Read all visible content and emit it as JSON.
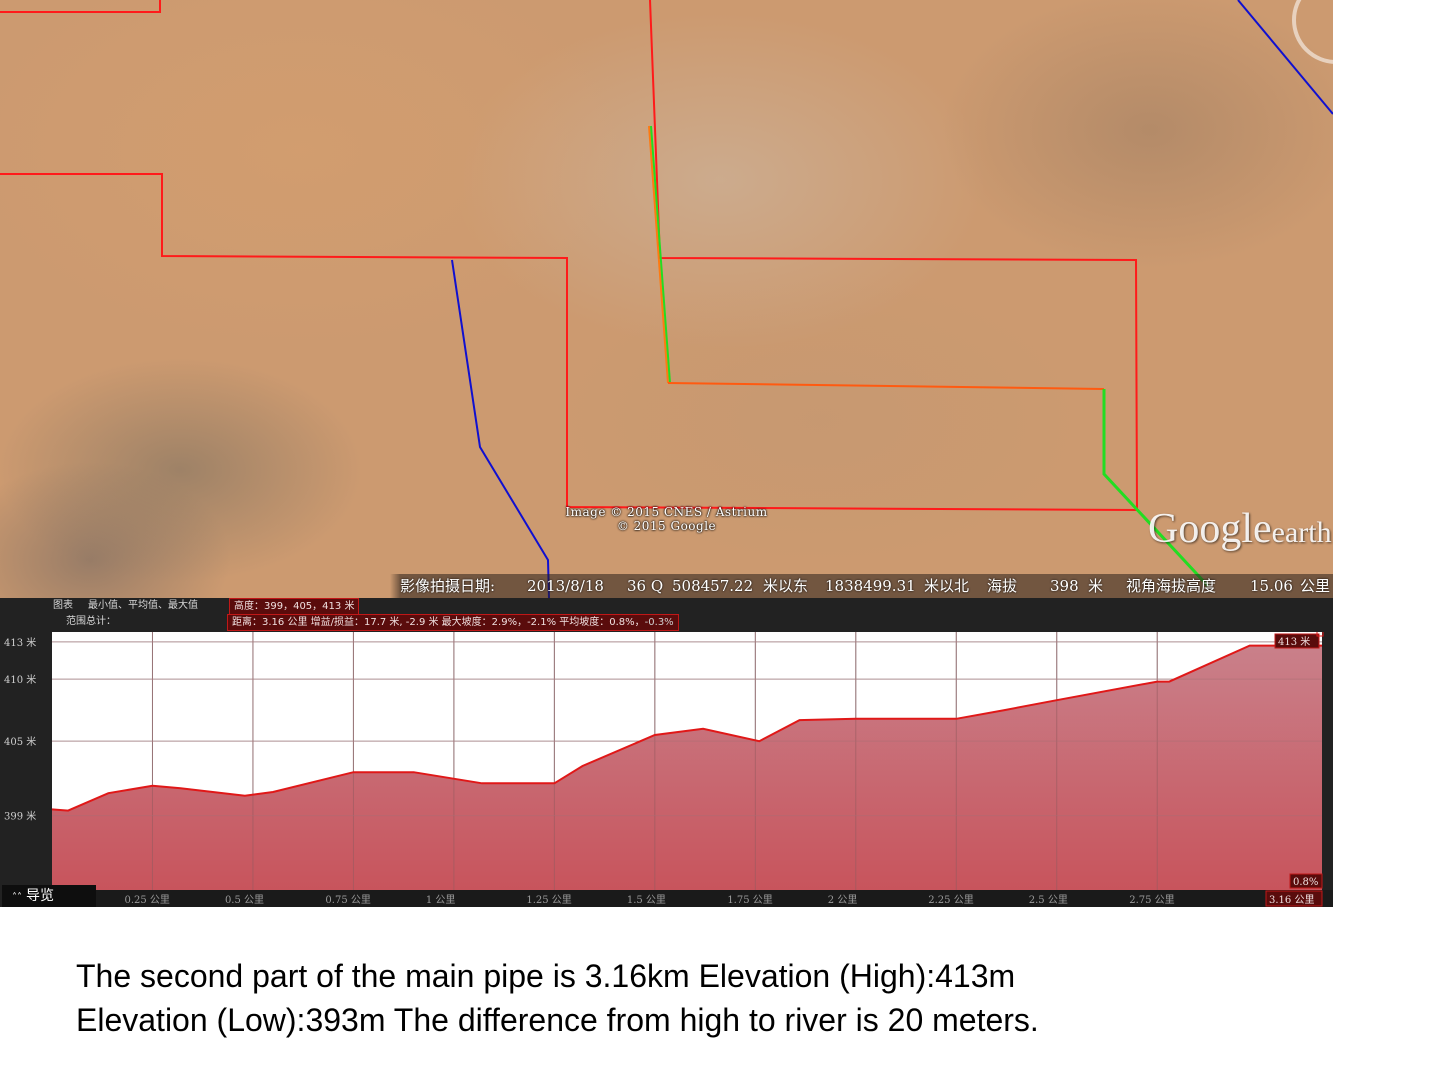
{
  "map": {
    "credit_line1": "Image © 2015 CNES / Astrium",
    "credit_line2": "© 2015 Google",
    "logo_text": "Google",
    "logo_suffix": "earth",
    "status": {
      "imagery_date_label": "影像拍摄日期:",
      "imagery_date": "2013/8/18",
      "zone": "36 Q",
      "easting": "508457.22",
      "easting_label": "米以东",
      "northing": "1838499.31",
      "northing_label": "米以北",
      "elevation_label": "海拔",
      "elevation": "398",
      "elevation_unit": "米",
      "eye_alt_label": "视角海拔高度",
      "eye_alt": "15.06",
      "eye_alt_unit": "公里"
    },
    "colors": {
      "boundary": "#ff1a1a",
      "river": "#1010d0",
      "pipe_main": "#ff5a10",
      "pipe_green": "#22dd22"
    }
  },
  "profile": {
    "row1_label": "图表",
    "row1_items": "最小值、平均值、最大值",
    "row1_box": "高度：399，405，413 米",
    "row2_label": "范围总计：",
    "row2_box": "距离：3.16 公里 增益/损益：17.7 米, -2.9 米 最大坡度：2.9%，-2.1% 平均坡度：0.8%，",
    "row2_extra": "-0.3%",
    "nav_label": "导览",
    "max_badge": "413 米",
    "slope_badge": "0.8%",
    "end_badge": "3.16 公里"
  },
  "chart_data": {
    "type": "area",
    "title": "",
    "xlabel": "",
    "ylabel": "",
    "x_unit": "公里",
    "y_unit": "米",
    "xlim": [
      0,
      3.16
    ],
    "ylim": [
      393,
      413.8
    ],
    "x_ticks": [
      "0.25 公里",
      "0.5 公里",
      "0.75 公里",
      "1 公里",
      "1.25 公里",
      "1.5 公里",
      "1.75 公里",
      "2 公里",
      "2.25 公里",
      "2.5 公里",
      "2.75 公里",
      "3.16 公里"
    ],
    "y_ticks": [
      "413 米",
      "410 米",
      "405 米",
      "399 米"
    ],
    "y_tick_values": [
      413,
      410,
      405,
      399
    ],
    "grid": true,
    "fill_color": "#c8646c",
    "line_color": "#e01818",
    "series": [
      {
        "x": [
          0,
          0.04,
          0.14,
          0.25,
          0.32,
          0.48,
          0.55,
          0.75,
          0.9,
          1.07,
          1.25,
          1.32,
          1.5,
          1.62,
          1.76,
          1.86,
          2.0,
          2.25,
          2.37,
          2.5,
          2.75,
          2.78,
          2.98,
          3.04,
          3.16
        ],
        "y": [
          399.5,
          399.4,
          400.8,
          401.4,
          401.2,
          400.6,
          400.9,
          402.5,
          402.5,
          401.6,
          401.6,
          403.0,
          405.5,
          406.0,
          405.0,
          406.7,
          406.8,
          406.8,
          407.5,
          408.3,
          409.8,
          409.8,
          412.7,
          412.7,
          412.7
        ]
      }
    ]
  },
  "caption": {
    "line1": "The second part of the main pipe is  3.16km  Elevation (High):413m",
    "line2": "Elevation (Low):393m The difference from high to river is 20 meters."
  }
}
